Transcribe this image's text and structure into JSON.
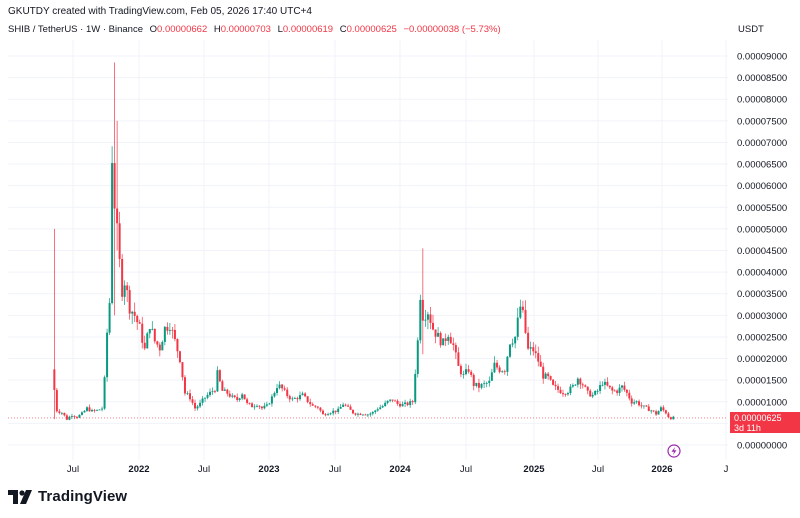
{
  "caption": "GKUTDY created with TradingView.com, Feb 05, 2026 17:40 UTC+4",
  "legend": {
    "symbol": "SHIB / TetherUS · 1W · Binance",
    "open_label": "O",
    "open": "0.00000662",
    "high_label": "H",
    "high": "0.00000703",
    "low_label": "L",
    "low": "0.00000619",
    "close_label": "C",
    "close": "0.00000625",
    "change": "−0.00000038 (−5.73%)"
  },
  "currency": "USDT",
  "price_badge": {
    "price": "0.00000625",
    "countdown": "3d 11h"
  },
  "brand": {
    "name": "TradingView",
    "logo_icon": "tradingview-logo-icon"
  },
  "colors": {
    "up": "#089981",
    "down": "#f23645",
    "grid": "#f0f3fa",
    "text": "#131722"
  },
  "chart_data": {
    "type": "candlestick",
    "symbol": "SHIB / TetherUS",
    "interval": "1W",
    "exchange": "Binance",
    "y_axis_position": "right",
    "x_tick_labels": [
      "Jul",
      "2022",
      "Jul",
      "2023",
      "Jul",
      "2024",
      "Jul",
      "2025",
      "Jul",
      "2026",
      "J"
    ],
    "x_tick_dates": [
      "2021-07-01",
      "2022-01-01",
      "2022-07-01",
      "2023-01-01",
      "2023-07-01",
      "2024-01-01",
      "2024-07-01",
      "2025-01-01",
      "2025-07-01",
      "2026-01-01",
      "2026-07-01"
    ],
    "bold_ticks": [
      "2022",
      "2023",
      "2024",
      "2025",
      "2026"
    ],
    "y_tick_labels": [
      "0.00000000",
      "0.00000500",
      "0.00001000",
      "0.00001500",
      "0.00002000",
      "0.00002500",
      "0.00003000",
      "0.00003500",
      "0.00004000",
      "0.00004500",
      "0.00005000",
      "0.00005500",
      "0.00006000",
      "0.00006500",
      "0.00007000",
      "0.00007500",
      "0.00008000",
      "0.00008500",
      "0.00009000"
    ],
    "ylim": [
      0,
      9e-05
    ],
    "last_price": 6.25e-06,
    "price_path": [
      [
        "2021-05-10",
        1.75e-05
      ],
      [
        "2021-05-24",
        8e-06
      ],
      [
        "2021-06-07",
        7.5e-06
      ],
      [
        "2021-06-21",
        6e-06
      ],
      [
        "2021-07-05",
        7e-06
      ],
      [
        "2021-07-19",
        6.5e-06
      ],
      [
        "2021-08-02",
        7.2e-06
      ],
      [
        "2021-08-16",
        8.5e-06
      ],
      [
        "2021-08-30",
        7.8e-06
      ],
      [
        "2021-09-13",
        8e-06
      ],
      [
        "2021-09-27",
        8.5e-06
      ],
      [
        "2021-10-04",
        1.5e-05
      ],
      [
        "2021-10-11",
        2.6e-05
      ],
      [
        "2021-10-18",
        3.3e-05
      ],
      [
        "2021-10-25",
        6.7e-05
      ],
      [
        "2021-11-01",
        5.6e-05
      ],
      [
        "2021-11-08",
        4.9e-05
      ],
      [
        "2021-11-15",
        4.2e-05
      ],
      [
        "2021-11-22",
        3.6e-05
      ],
      [
        "2021-11-29",
        3.8e-05
      ],
      [
        "2021-12-13",
        3.2e-05
      ],
      [
        "2021-12-27",
        3e-05
      ],
      [
        "2022-01-10",
        2.7e-05
      ],
      [
        "2022-01-24",
        2.2e-05
      ],
      [
        "2022-02-07",
        2.8e-05
      ],
      [
        "2022-02-21",
        2.4e-05
      ],
      [
        "2022-03-07",
        2.25e-05
      ],
      [
        "2022-03-21",
        2.7e-05
      ],
      [
        "2022-04-04",
        2.8e-05
      ],
      [
        "2022-04-18",
        2.4e-05
      ],
      [
        "2022-05-02",
        2e-05
      ],
      [
        "2022-05-16",
        1.2e-05
      ],
      [
        "2022-05-30",
        1.1e-05
      ],
      [
        "2022-06-13",
        8.5e-06
      ],
      [
        "2022-06-27",
        9.5e-06
      ],
      [
        "2022-07-11",
        1.1e-05
      ],
      [
        "2022-07-25",
        1.2e-05
      ],
      [
        "2022-08-08",
        1.3e-05
      ],
      [
        "2022-08-15",
        1.65e-05
      ],
      [
        "2022-08-29",
        1.25e-05
      ],
      [
        "2022-09-12",
        1.2e-05
      ],
      [
        "2022-09-26",
        1.1e-05
      ],
      [
        "2022-10-10",
        1.05e-05
      ],
      [
        "2022-10-24",
        1.2e-05
      ],
      [
        "2022-11-07",
        9.5e-06
      ],
      [
        "2022-11-21",
        9e-06
      ],
      [
        "2022-12-05",
        9.5e-06
      ],
      [
        "2022-12-19",
        8.5e-06
      ],
      [
        "2023-01-02",
        9e-06
      ],
      [
        "2023-01-16",
        1.1e-05
      ],
      [
        "2023-02-01",
        1.4e-05
      ],
      [
        "2023-02-13",
        1.3e-05
      ],
      [
        "2023-02-27",
        1.15e-05
      ],
      [
        "2023-03-13",
        1.05e-05
      ],
      [
        "2023-03-27",
        1.1e-05
      ],
      [
        "2023-04-10",
        1.15e-05
      ],
      [
        "2023-04-24",
        1.02e-05
      ],
      [
        "2023-05-08",
        9e-06
      ],
      [
        "2023-05-22",
        8.8e-06
      ],
      [
        "2023-06-05",
        7e-06
      ],
      [
        "2023-06-19",
        7.5e-06
      ],
      [
        "2023-07-03",
        7.8e-06
      ],
      [
        "2023-07-17",
        8e-06
      ],
      [
        "2023-07-31",
        9.5e-06
      ],
      [
        "2023-08-14",
        8.5e-06
      ],
      [
        "2023-08-28",
        7.5e-06
      ],
      [
        "2023-09-11",
        7.2e-06
      ],
      [
        "2023-09-25",
        7.3e-06
      ],
      [
        "2023-10-09",
        7.1e-06
      ],
      [
        "2023-10-23",
        7.5e-06
      ],
      [
        "2023-11-06",
        8.5e-06
      ],
      [
        "2023-11-20",
        9e-06
      ],
      [
        "2023-12-04",
        1e-05
      ],
      [
        "2023-12-18",
        1.05e-05
      ],
      [
        "2024-01-01",
        9.5e-06
      ],
      [
        "2024-01-15",
        9.3e-06
      ],
      [
        "2024-01-29",
        9.5e-06
      ],
      [
        "2024-02-12",
        1e-05
      ],
      [
        "2024-02-26",
        2.4e-05
      ],
      [
        "2024-03-04",
        3.5e-05
      ],
      [
        "2024-03-11",
        3e-05
      ],
      [
        "2024-03-25",
        3.1e-05
      ],
      [
        "2024-04-08",
        2.7e-05
      ],
      [
        "2024-04-22",
        2.5e-05
      ],
      [
        "2024-05-06",
        2.35e-05
      ],
      [
        "2024-05-20",
        2.6e-05
      ],
      [
        "2024-06-03",
        2.3e-05
      ],
      [
        "2024-06-17",
        1.8e-05
      ],
      [
        "2024-07-01",
        1.6e-05
      ],
      [
        "2024-07-15",
        1.75e-05
      ],
      [
        "2024-07-29",
        1.4e-05
      ],
      [
        "2024-08-12",
        1.35e-05
      ],
      [
        "2024-08-26",
        1.4e-05
      ],
      [
        "2024-09-09",
        1.45e-05
      ],
      [
        "2024-09-23",
        1.85e-05
      ],
      [
        "2024-10-07",
        1.75e-05
      ],
      [
        "2024-10-21",
        1.75e-05
      ],
      [
        "2024-11-04",
        2.4e-05
      ],
      [
        "2024-11-18",
        2.5e-05
      ],
      [
        "2024-12-02",
        3.2e-05
      ],
      [
        "2024-12-09",
        3e-05
      ],
      [
        "2024-12-23",
        2.2e-05
      ],
      [
        "2025-01-06",
        2.2e-05
      ],
      [
        "2025-01-20",
        1.95e-05
      ],
      [
        "2025-02-03",
        1.6e-05
      ],
      [
        "2025-02-17",
        1.55e-05
      ],
      [
        "2025-03-03",
        1.35e-05
      ],
      [
        "2025-03-17",
        1.28e-05
      ],
      [
        "2025-03-31",
        1.22e-05
      ],
      [
        "2025-04-14",
        1.25e-05
      ],
      [
        "2025-04-28",
        1.35e-05
      ],
      [
        "2025-05-12",
        1.55e-05
      ],
      [
        "2025-05-26",
        1.4e-05
      ],
      [
        "2025-06-09",
        1.2e-05
      ],
      [
        "2025-06-23",
        1.15e-05
      ],
      [
        "2025-07-07",
        1.25e-05
      ],
      [
        "2025-07-21",
        1.45e-05
      ],
      [
        "2025-08-04",
        1.35e-05
      ],
      [
        "2025-08-18",
        1.25e-05
      ],
      [
        "2025-09-01",
        1.25e-05
      ],
      [
        "2025-09-15",
        1.35e-05
      ],
      [
        "2025-09-29",
        1.2e-05
      ],
      [
        "2025-10-13",
        1e-05
      ],
      [
        "2025-10-27",
        1e-05
      ],
      [
        "2025-11-10",
        9e-06
      ],
      [
        "2025-11-24",
        8.5e-06
      ],
      [
        "2025-12-08",
        8e-06
      ],
      [
        "2025-12-22",
        7.2e-06
      ],
      [
        "2026-01-05",
        8.5e-06
      ],
      [
        "2026-01-19",
        7.5e-06
      ],
      [
        "2026-01-26",
        6.6e-06
      ],
      [
        "2026-02-02",
        6.25e-06
      ]
    ],
    "wick_spikes": [
      {
        "date": "2021-05-10",
        "high": 5e-05,
        "low": 6e-06
      },
      {
        "date": "2021-10-25",
        "high": 8.85e-05,
        "low": 3e-05
      },
      {
        "date": "2021-11-01",
        "high": 7.5e-05,
        "low": 4.5e-05
      },
      {
        "date": "2024-03-04",
        "high": 4.55e-05,
        "low": 2.1e-05
      },
      {
        "date": "2024-12-09",
        "high": 3.35e-05,
        "low": 2.6e-05
      }
    ]
  }
}
